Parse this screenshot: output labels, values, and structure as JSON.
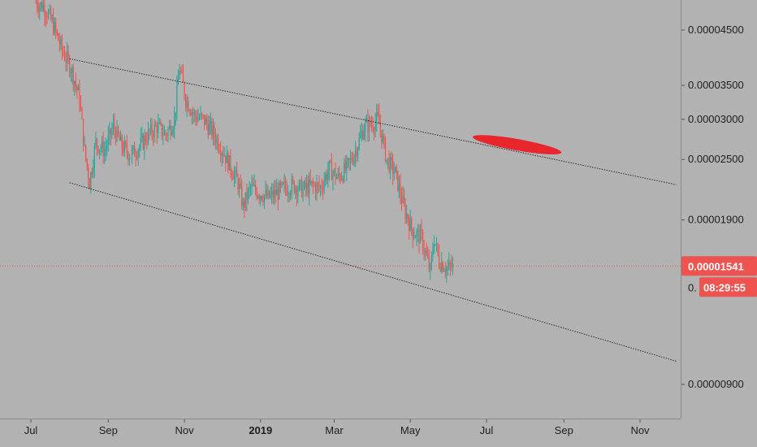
{
  "colors": {
    "background": "#b2b2b2",
    "up": "#26a69a",
    "down": "#ef5350",
    "price_line": "#ef5350",
    "badge": "#ef5350",
    "trendline": "#2a2a2a",
    "highlight": "#e8262c"
  },
  "chart_data": {
    "type": "candlestick",
    "scale": "log",
    "x_tick_labels": [
      "Jul",
      "Sep",
      "Nov",
      "2019",
      "Mar",
      "May",
      "Jul",
      "Sep",
      "Nov"
    ],
    "y_tick_labels": [
      "0.00004500",
      "0.00003500",
      "0.00003000",
      "0.00002500",
      "0.00001900",
      "0.00000900"
    ],
    "y_ticks": [
      4.5e-05,
      3.5e-05,
      3e-05,
      2.5e-05,
      1.9e-05,
      9e-06
    ],
    "last_price_label": "0.00001541",
    "last_price": 1.541e-05,
    "countdown_label": "08:29:55",
    "hidden_tick_fragment": "0.",
    "close_path": [
      [
        "2018-07-05",
        5.1e-05
      ],
      [
        "2018-07-12",
        5e-05
      ],
      [
        "2018-07-19",
        4.6e-05
      ],
      [
        "2018-07-26",
        4.1e-05
      ],
      [
        "2018-08-02",
        3.8e-05
      ],
      [
        "2018-08-09",
        3.3e-05
      ],
      [
        "2018-08-13",
        2.6e-05
      ],
      [
        "2018-08-17",
        2.25e-05
      ],
      [
        "2018-08-22",
        2.7e-05
      ],
      [
        "2018-08-29",
        2.6e-05
      ],
      [
        "2018-09-05",
        2.9e-05
      ],
      [
        "2018-09-12",
        2.65e-05
      ],
      [
        "2018-09-19",
        2.55e-05
      ],
      [
        "2018-09-26",
        2.65e-05
      ],
      [
        "2018-10-03",
        2.8e-05
      ],
      [
        "2018-10-10",
        2.9e-05
      ],
      [
        "2018-10-17",
        2.8e-05
      ],
      [
        "2018-10-24",
        3e-05
      ],
      [
        "2018-10-28",
        3.8e-05
      ],
      [
        "2018-11-02",
        3.3e-05
      ],
      [
        "2018-11-09",
        3.05e-05
      ],
      [
        "2018-11-16",
        3e-05
      ],
      [
        "2018-11-23",
        2.85e-05
      ],
      [
        "2018-11-30",
        2.65e-05
      ],
      [
        "2018-12-07",
        2.45e-05
      ],
      [
        "2018-12-14",
        2.25e-05
      ],
      [
        "2018-12-18",
        2.02e-05
      ],
      [
        "2018-12-24",
        2.2e-05
      ],
      [
        "2018-12-31",
        2.15e-05
      ],
      [
        "2019-01-07",
        2.1e-05
      ],
      [
        "2019-01-14",
        2.15e-05
      ],
      [
        "2019-01-21",
        2.2e-05
      ],
      [
        "2019-01-28",
        2.22e-05
      ],
      [
        "2019-02-04",
        2.18e-05
      ],
      [
        "2019-02-11",
        2.22e-05
      ],
      [
        "2019-02-18",
        2.2e-05
      ],
      [
        "2019-02-25",
        2.4e-05
      ],
      [
        "2019-03-04",
        2.3e-05
      ],
      [
        "2019-03-11",
        2.4e-05
      ],
      [
        "2019-03-18",
        2.6e-05
      ],
      [
        "2019-03-25",
        2.9e-05
      ],
      [
        "2019-04-01",
        2.95e-05
      ],
      [
        "2019-04-05",
        3e-05
      ],
      [
        "2019-04-08",
        2.8e-05
      ],
      [
        "2019-04-12",
        2.5e-05
      ],
      [
        "2019-04-19",
        2.35e-05
      ],
      [
        "2019-04-26",
        2e-05
      ],
      [
        "2019-05-03",
        1.8e-05
      ],
      [
        "2019-05-10",
        1.75e-05
      ],
      [
        "2019-05-14",
        1.6e-05
      ],
      [
        "2019-05-17",
        1.5e-05
      ],
      [
        "2019-05-20",
        1.75e-05
      ],
      [
        "2019-05-24",
        1.58e-05
      ],
      [
        "2019-05-31",
        1.52e-05
      ],
      [
        "2019-06-04",
        1.54e-05
      ]
    ],
    "trendlines": [
      {
        "from": [
          "2018-08-01",
          3.95e-05
        ],
        "to": [
          "2019-11-30",
          2.23e-05
        ]
      },
      {
        "from": [
          "2018-08-01",
          2.25e-05
        ],
        "to": [
          "2019-11-30",
          1e-05
        ]
      }
    ],
    "highlight_region": {
      "from": [
        "2019-06-20",
        2.77e-05
      ],
      "to": [
        "2019-08-30",
        2.58e-05
      ]
    }
  }
}
